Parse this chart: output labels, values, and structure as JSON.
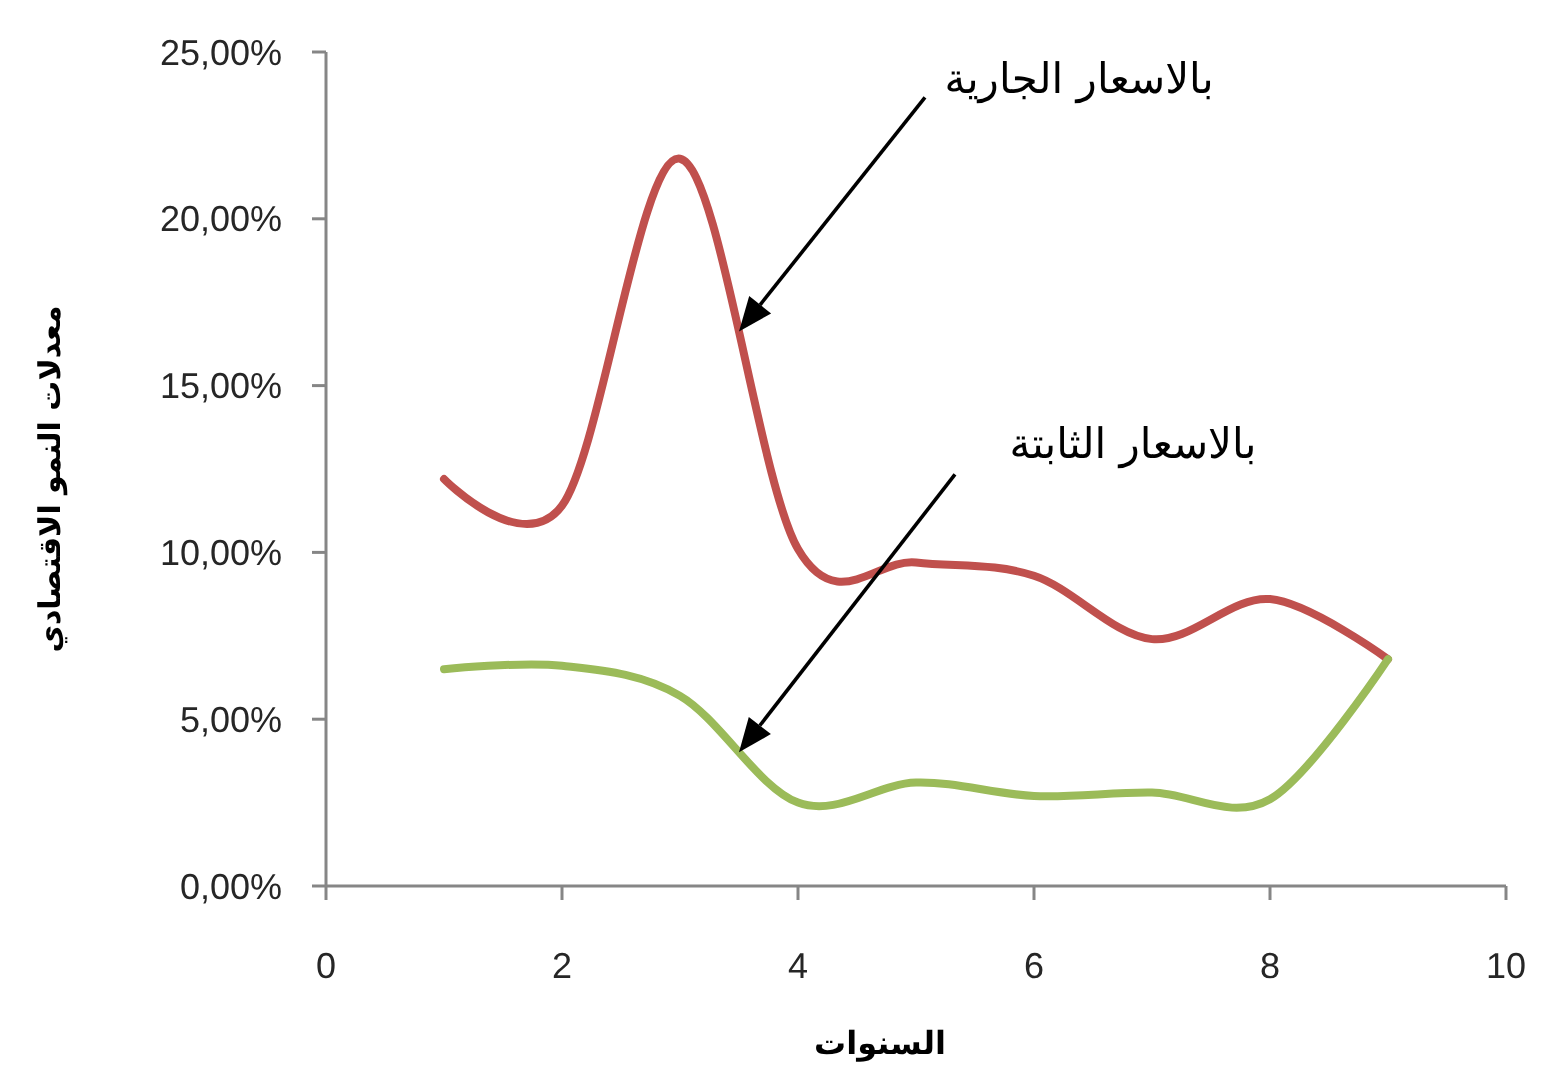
{
  "chart_data": {
    "type": "line",
    "xlabel": "السنوات",
    "ylabel": "معدلات النمو الاقتصادي",
    "xlim": [
      0,
      10
    ],
    "xticks": [
      0,
      2,
      4,
      6,
      8,
      10
    ],
    "ylim": [
      0,
      25
    ],
    "yticks": [
      {
        "value": 0,
        "label": "0,00%"
      },
      {
        "value": 5,
        "label": "5,00%"
      },
      {
        "value": 10,
        "label": "10,00%"
      },
      {
        "value": 15,
        "label": "15,00%"
      },
      {
        "value": 20,
        "label": "20,00%"
      },
      {
        "value": 25,
        "label": "25,00%"
      }
    ],
    "x": [
      1,
      2,
      3,
      4,
      5,
      6,
      7,
      8,
      9
    ],
    "series": [
      {
        "color": "#c0504d",
        "values": [
          12.2,
          11.4,
          21.8,
          10.1,
          9.7,
          9.3,
          7.4,
          8.6,
          6.8
        ]
      },
      {
        "color": "#9bbb59",
        "values": [
          6.5,
          6.6,
          5.7,
          2.5,
          3.1,
          2.7,
          2.8,
          2.6,
          6.8
        ]
      }
    ],
    "annotations": [
      "بالاسعار الجارية",
      "بالاسعار الثابتة"
    ]
  }
}
